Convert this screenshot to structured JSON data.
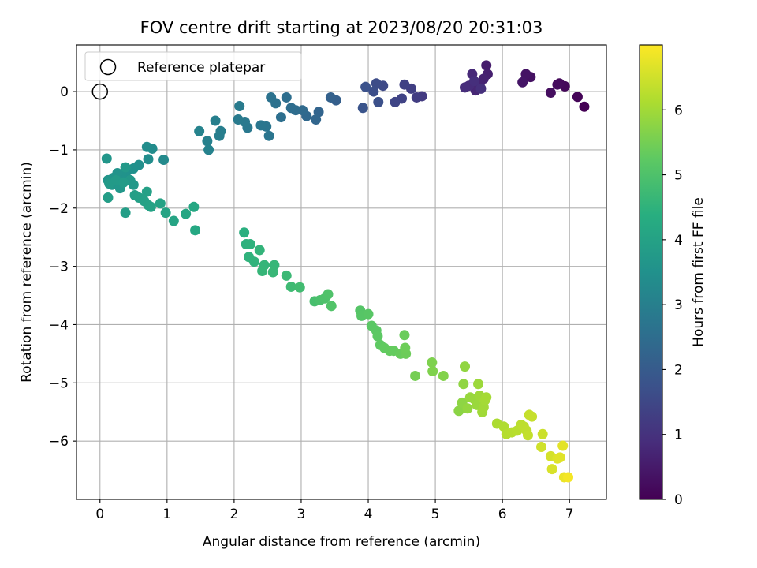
{
  "chart_data": {
    "type": "scatter",
    "title": "FOV centre drift starting at 2023/08/20 20:31:03",
    "xlabel": "Angular distance from reference (arcmin)",
    "ylabel": "Rotation from reference (arcmin)",
    "xlim": [
      -0.35,
      7.55
    ],
    "ylim": [
      -7.0,
      0.8
    ],
    "xticks": [
      0,
      1,
      2,
      3,
      4,
      5,
      6,
      7
    ],
    "yticks": [
      0,
      -1,
      -2,
      -3,
      -4,
      -5,
      -6
    ],
    "grid": true,
    "legend": {
      "position": "top-left",
      "entries": [
        "Reference platepar"
      ]
    },
    "reference_point": {
      "x": 0.0,
      "y": 0.0
    },
    "colorbar": {
      "label": "Hours from first FF file",
      "range": [
        0,
        7.0
      ],
      "ticks": [
        0,
        1,
        2,
        3,
        4,
        5,
        6
      ],
      "colormap": "viridis"
    },
    "series": [
      {
        "points": [
          [
            7.22,
            -0.26,
            0.0
          ],
          [
            7.12,
            -0.09,
            0.06
          ],
          [
            6.93,
            0.09,
            0.12
          ],
          [
            6.85,
            0.14,
            0.16
          ],
          [
            6.82,
            0.12,
            0.2
          ],
          [
            6.72,
            -0.02,
            0.25
          ],
          [
            6.42,
            0.25,
            0.32
          ],
          [
            6.35,
            0.3,
            0.36
          ],
          [
            6.3,
            0.16,
            0.4
          ],
          [
            5.76,
            0.45,
            0.55
          ],
          [
            5.78,
            0.3,
            0.6
          ],
          [
            5.72,
            0.22,
            0.65
          ],
          [
            5.66,
            0.12,
            0.7
          ],
          [
            5.6,
            0.02,
            0.75
          ],
          [
            5.55,
            0.3,
            0.8
          ],
          [
            5.5,
            0.1,
            0.85
          ],
          [
            5.44,
            0.07,
            0.9
          ],
          [
            5.58,
            0.18,
            0.92
          ],
          [
            5.68,
            0.05,
            0.95
          ],
          [
            4.8,
            -0.08,
            1.2
          ],
          [
            4.72,
            -0.1,
            1.25
          ],
          [
            4.64,
            0.05,
            1.3
          ],
          [
            4.54,
            0.12,
            1.35
          ],
          [
            4.5,
            -0.12,
            1.4
          ],
          [
            4.4,
            -0.18,
            1.45
          ],
          [
            4.22,
            0.1,
            1.55
          ],
          [
            4.12,
            0.14,
            1.6
          ],
          [
            4.08,
            0.0,
            1.65
          ],
          [
            4.15,
            -0.18,
            1.7
          ],
          [
            3.96,
            0.08,
            1.75
          ],
          [
            3.92,
            -0.28,
            1.8
          ],
          [
            3.52,
            -0.15,
            2.1
          ],
          [
            3.44,
            -0.1,
            2.15
          ],
          [
            3.26,
            -0.35,
            2.25
          ],
          [
            3.22,
            -0.48,
            2.3
          ],
          [
            3.08,
            -0.42,
            2.35
          ],
          [
            3.02,
            -0.32,
            2.4
          ],
          [
            2.92,
            -0.32,
            2.45
          ],
          [
            2.85,
            -0.28,
            2.5
          ],
          [
            2.78,
            -0.1,
            2.52
          ],
          [
            2.7,
            -0.44,
            2.55
          ],
          [
            2.62,
            -0.2,
            2.6
          ],
          [
            2.55,
            -0.1,
            2.62
          ],
          [
            2.48,
            -0.6,
            2.7
          ],
          [
            2.52,
            -0.76,
            2.72
          ],
          [
            2.4,
            -0.58,
            2.75
          ],
          [
            2.2,
            -0.62,
            2.8
          ],
          [
            2.16,
            -0.52,
            2.82
          ],
          [
            2.06,
            -0.48,
            2.85
          ],
          [
            2.08,
            -0.25,
            2.88
          ],
          [
            1.8,
            -0.68,
            2.95
          ],
          [
            1.78,
            -0.76,
            2.97
          ],
          [
            1.72,
            -0.5,
            3.0
          ],
          [
            1.6,
            -0.85,
            3.05
          ],
          [
            1.62,
            -1.0,
            3.08
          ],
          [
            1.48,
            -0.68,
            3.1
          ],
          [
            0.95,
            -1.17,
            3.3
          ],
          [
            0.78,
            -0.98,
            3.35
          ],
          [
            0.7,
            -0.95,
            3.38
          ],
          [
            0.72,
            -1.16,
            3.4
          ],
          [
            0.58,
            -1.26,
            3.45
          ],
          [
            0.5,
            -1.32,
            3.48
          ],
          [
            0.42,
            -1.35,
            3.5
          ],
          [
            0.38,
            -1.45,
            3.52
          ],
          [
            0.32,
            -1.42,
            3.55
          ],
          [
            0.26,
            -1.4,
            3.57
          ],
          [
            0.2,
            -1.48,
            3.6
          ],
          [
            0.12,
            -1.52,
            3.62
          ],
          [
            0.1,
            -1.15,
            3.64
          ],
          [
            0.18,
            -1.6,
            3.66
          ],
          [
            0.3,
            -1.66,
            3.68
          ],
          [
            0.45,
            -1.52,
            3.7
          ],
          [
            0.5,
            -1.6,
            3.72
          ],
          [
            0.38,
            -1.3,
            3.74
          ],
          [
            0.14,
            -1.58,
            3.76
          ],
          [
            0.24,
            -1.52,
            3.78
          ],
          [
            0.35,
            -1.56,
            3.8
          ],
          [
            0.12,
            -1.82,
            3.85
          ],
          [
            0.38,
            -2.08,
            3.88
          ],
          [
            0.52,
            -1.78,
            3.9
          ],
          [
            0.58,
            -1.82,
            3.92
          ],
          [
            0.66,
            -1.88,
            3.94
          ],
          [
            0.7,
            -1.72,
            3.96
          ],
          [
            0.72,
            -1.95,
            3.98
          ],
          [
            0.76,
            -1.98,
            4.0
          ],
          [
            0.9,
            -1.92,
            4.02
          ],
          [
            0.98,
            -2.08,
            4.05
          ],
          [
            1.1,
            -2.22,
            4.08
          ],
          [
            1.28,
            -2.1,
            4.12
          ],
          [
            1.4,
            -1.98,
            4.15
          ],
          [
            1.42,
            -2.38,
            4.18
          ],
          [
            2.15,
            -2.42,
            4.4
          ],
          [
            2.18,
            -2.62,
            4.45
          ],
          [
            2.24,
            -2.62,
            4.48
          ],
          [
            2.22,
            -2.84,
            4.5
          ],
          [
            2.3,
            -2.92,
            4.52
          ],
          [
            2.38,
            -2.72,
            4.55
          ],
          [
            2.45,
            -2.98,
            4.58
          ],
          [
            2.42,
            -3.08,
            4.6
          ],
          [
            2.6,
            -2.98,
            4.62
          ],
          [
            2.58,
            -3.1,
            4.65
          ],
          [
            2.78,
            -3.16,
            4.7
          ],
          [
            2.85,
            -3.35,
            4.75
          ],
          [
            2.98,
            -3.36,
            4.8
          ],
          [
            3.2,
            -3.6,
            4.9
          ],
          [
            3.28,
            -3.58,
            4.95
          ],
          [
            3.35,
            -3.55,
            5.0
          ],
          [
            3.4,
            -3.48,
            5.02
          ],
          [
            3.45,
            -3.68,
            5.05
          ],
          [
            3.88,
            -3.76,
            5.1
          ],
          [
            3.9,
            -3.85,
            5.12
          ],
          [
            4.0,
            -3.82,
            5.15
          ],
          [
            4.05,
            -4.02,
            5.18
          ],
          [
            4.12,
            -4.1,
            5.2
          ],
          [
            4.14,
            -4.2,
            5.22
          ],
          [
            4.18,
            -4.35,
            5.25
          ],
          [
            4.24,
            -4.4,
            5.28
          ],
          [
            4.32,
            -4.45,
            5.3
          ],
          [
            4.38,
            -4.45,
            5.32
          ],
          [
            4.48,
            -4.5,
            5.35
          ],
          [
            4.54,
            -4.18,
            5.38
          ],
          [
            4.56,
            -4.5,
            5.4
          ],
          [
            4.55,
            -4.4,
            5.42
          ],
          [
            4.7,
            -4.88,
            5.5
          ],
          [
            4.95,
            -4.65,
            5.6
          ],
          [
            4.96,
            -4.8,
            5.62
          ],
          [
            5.12,
            -4.88,
            5.65
          ],
          [
            5.35,
            -5.48,
            5.75
          ],
          [
            5.4,
            -5.34,
            5.78
          ],
          [
            5.42,
            -5.02,
            5.8
          ],
          [
            5.44,
            -4.72,
            5.82
          ],
          [
            5.48,
            -5.44,
            5.85
          ],
          [
            5.52,
            -5.25,
            5.88
          ],
          [
            5.58,
            -5.28,
            5.9
          ],
          [
            5.62,
            -5.38,
            5.92
          ],
          [
            5.64,
            -5.02,
            5.94
          ],
          [
            5.66,
            -5.22,
            5.96
          ],
          [
            5.7,
            -5.5,
            5.98
          ],
          [
            5.72,
            -5.42,
            6.0
          ],
          [
            5.74,
            -5.3,
            6.02
          ],
          [
            5.76,
            -5.25,
            6.04
          ],
          [
            5.92,
            -5.7,
            6.1
          ],
          [
            6.02,
            -5.75,
            6.15
          ],
          [
            6.06,
            -5.88,
            6.2
          ],
          [
            6.14,
            -5.85,
            6.22
          ],
          [
            6.22,
            -5.82,
            6.25
          ],
          [
            6.28,
            -5.72,
            6.28
          ],
          [
            6.32,
            -5.75,
            6.3
          ],
          [
            6.36,
            -5.82,
            6.32
          ],
          [
            6.38,
            -5.9,
            6.35
          ],
          [
            6.4,
            -5.55,
            6.38
          ],
          [
            6.44,
            -5.58,
            6.4
          ],
          [
            6.6,
            -5.88,
            6.45
          ],
          [
            6.58,
            -6.1,
            6.5
          ],
          [
            6.72,
            -6.26,
            6.55
          ],
          [
            6.74,
            -6.48,
            6.6
          ],
          [
            6.82,
            -6.3,
            6.65
          ],
          [
            6.86,
            -6.28,
            6.68
          ],
          [
            6.9,
            -6.08,
            6.72
          ],
          [
            6.92,
            -6.62,
            6.8
          ],
          [
            6.98,
            -6.62,
            6.9
          ]
        ]
      }
    ]
  }
}
